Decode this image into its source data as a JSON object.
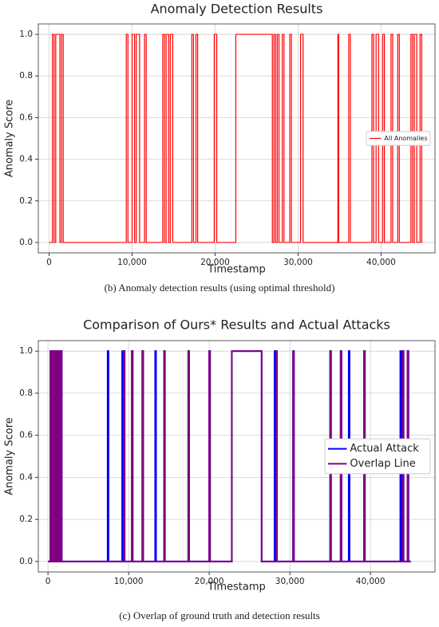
{
  "chart_data": [
    {
      "type": "line",
      "title": "Anomaly Detection Results",
      "x_label": "Timestamp",
      "y_label": "Anomaly Score",
      "caption": "(b) Anomaly detection results (using optimal threshold)",
      "xlim": [
        -1300,
        46500
      ],
      "ylim": [
        -0.05,
        1.05
      ],
      "xticks": [
        0,
        {
          "value": 10000,
          "label": "10,000"
        },
        {
          "value": 20000,
          "label": "20,000"
        },
        {
          "value": 30000,
          "label": "30,000"
        },
        {
          "value": 40000,
          "label": "40,000"
        }
      ],
      "yticks": [
        {
          "value": 0,
          "label": "0.0"
        },
        0.2,
        0.4,
        0.6,
        0.8,
        {
          "value": 1,
          "label": "1.0"
        }
      ],
      "grid": true,
      "legend": "center right",
      "series": [
        {
          "name": "All Anomalies",
          "color": "#ff0000",
          "x": [
            0,
            400,
            400,
            600,
            600,
            800,
            800,
            1300,
            1300,
            1500,
            1500,
            1700,
            1700,
            9300,
            9300,
            9500,
            9500,
            10000,
            10000,
            10300,
            10300,
            10500,
            10500,
            10900,
            10900,
            11500,
            11500,
            11700,
            11700,
            13700,
            13700,
            13900,
            13900,
            14100,
            14100,
            14400,
            14400,
            14600,
            14600,
            14900,
            14900,
            17200,
            17200,
            17400,
            17400,
            17700,
            17700,
            17900,
            17900,
            19900,
            19900,
            20200,
            20200,
            22500,
            22500,
            26900,
            26900,
            27100,
            27100,
            27300,
            27300,
            27500,
            27500,
            27700,
            27700,
            28100,
            28100,
            28300,
            28300,
            29000,
            29000,
            29200,
            29200,
            30300,
            30300,
            30600,
            30600,
            34800,
            34800,
            34900,
            34900,
            36100,
            36100,
            36300,
            36300,
            38900,
            38900,
            39100,
            39100,
            39400,
            39400,
            39700,
            39700,
            40200,
            40200,
            40400,
            40400,
            41200,
            41200,
            41400,
            41400,
            42000,
            42000,
            42200,
            42200,
            43600,
            43600,
            43800,
            43800,
            44000,
            44000,
            44300,
            44300,
            44700,
            44700,
            44900,
            44900,
            45000
          ],
          "values": [
            0,
            0,
            1,
            1,
            0,
            0,
            1,
            1,
            0,
            0,
            1,
            1,
            0,
            0,
            1,
            1,
            0,
            0,
            1,
            1,
            0,
            0,
            1,
            1,
            0,
            0,
            1,
            1,
            0,
            0,
            1,
            1,
            0,
            0,
            1,
            1,
            0,
            0,
            1,
            1,
            0,
            0,
            1,
            1,
            0,
            0,
            1,
            1,
            0,
            0,
            1,
            1,
            0,
            0,
            1,
            1,
            0,
            0,
            1,
            1,
            0,
            0,
            1,
            1,
            0,
            0,
            1,
            1,
            0,
            0,
            1,
            1,
            0,
            0,
            1,
            1,
            0,
            0,
            1,
            1,
            0,
            0,
            1,
            1,
            0,
            0,
            1,
            1,
            0,
            0,
            1,
            1,
            0,
            0,
            1,
            1,
            0,
            0,
            1,
            1,
            0,
            0,
            1,
            1,
            0,
            0,
            1,
            1,
            0,
            0,
            1,
            1,
            0,
            0,
            1,
            1,
            0,
            0
          ]
        }
      ]
    },
    {
      "type": "line",
      "title": "Comparison of Ours* Results and Actual Attacks",
      "x_label": "Timestamp",
      "y_label": "Anomaly Score",
      "caption": "(c) Overlap of ground truth and detection results",
      "xlim": [
        -1200,
        48000
      ],
      "ylim": [
        -0.05,
        1.05
      ],
      "xticks": [
        0,
        {
          "value": 10000,
          "label": "10,000"
        },
        {
          "value": 20000,
          "label": "20,000"
        },
        {
          "value": 30000,
          "label": "30,000"
        },
        {
          "value": 40000,
          "label": "40,000"
        }
      ],
      "yticks": [
        {
          "value": 0,
          "label": "0.0"
        },
        0.2,
        0.4,
        0.6,
        0.8,
        {
          "value": 1,
          "label": "1.0"
        }
      ],
      "grid": true,
      "legend": "center right",
      "series": [
        {
          "name": "Actual Attack",
          "color": "#0000ff",
          "x": [
            0,
            300,
            300,
            500,
            500,
            700,
            700,
            900,
            900,
            1100,
            1100,
            1300,
            1300,
            1500,
            1500,
            1700,
            1700,
            7400,
            7400,
            7500,
            7500,
            9200,
            9200,
            9300,
            9300,
            9400,
            9400,
            9500,
            9500,
            10400,
            10400,
            10500,
            10500,
            11700,
            11700,
            11800,
            11800,
            13300,
            13300,
            13400,
            13400,
            14400,
            14400,
            14500,
            14500,
            17400,
            17400,
            17500,
            17500,
            20000,
            20000,
            20100,
            20100,
            22800,
            22800,
            26500,
            26500,
            28100,
            28100,
            28200,
            28200,
            28300,
            28300,
            28400,
            28400,
            30400,
            30400,
            30500,
            30500,
            35000,
            35000,
            35100,
            35100,
            36300,
            36300,
            36400,
            36400,
            37300,
            37300,
            37400,
            37400,
            39200,
            39200,
            39300,
            39300,
            43700,
            43700,
            43800,
            43800,
            44000,
            44000,
            44100,
            44100,
            44600,
            44600,
            44700,
            44700,
            45000
          ],
          "values": [
            0,
            0,
            1,
            1,
            0,
            0,
            1,
            1,
            0,
            0,
            1,
            1,
            0,
            0,
            1,
            1,
            0,
            0,
            1,
            1,
            0,
            0,
            1,
            1,
            0,
            0,
            1,
            1,
            0,
            0,
            1,
            1,
            0,
            0,
            1,
            1,
            0,
            0,
            1,
            1,
            0,
            0,
            1,
            1,
            0,
            0,
            1,
            1,
            0,
            0,
            1,
            1,
            0,
            0,
            1,
            1,
            0,
            0,
            1,
            1,
            0,
            0,
            1,
            1,
            0,
            0,
            1,
            1,
            0,
            0,
            1,
            1,
            0,
            0,
            1,
            1,
            0,
            0,
            1,
            1,
            0,
            0,
            1,
            1,
            0,
            0,
            1,
            1,
            0,
            0,
            1,
            1,
            0,
            0,
            1,
            1,
            0,
            0
          ]
        },
        {
          "name": "Overlap Line",
          "color": "#800080",
          "x": [
            0,
            300,
            300,
            500,
            500,
            700,
            700,
            900,
            900,
            1100,
            1100,
            1300,
            1300,
            1500,
            1500,
            1700,
            1700,
            9400,
            9400,
            9500,
            9500,
            10400,
            10400,
            10500,
            10500,
            11700,
            11700,
            11800,
            11800,
            14400,
            14400,
            14500,
            14500,
            17400,
            17400,
            17500,
            17500,
            20000,
            20000,
            20100,
            20100,
            22800,
            22800,
            26500,
            26500,
            28300,
            28300,
            28400,
            28400,
            30400,
            30400,
            30500,
            30500,
            35000,
            35000,
            35100,
            35100,
            36300,
            36300,
            36400,
            36400,
            39200,
            39200,
            39300,
            39300,
            44000,
            44000,
            44100,
            44100,
            44600,
            44600,
            44700,
            44700,
            45000
          ],
          "values": [
            0,
            0,
            1,
            1,
            0,
            0,
            1,
            1,
            0,
            0,
            1,
            1,
            0,
            0,
            1,
            1,
            0,
            0,
            1,
            1,
            0,
            0,
            1,
            1,
            0,
            0,
            1,
            1,
            0,
            0,
            1,
            1,
            0,
            0,
            1,
            1,
            0,
            0,
            1,
            1,
            0,
            0,
            1,
            1,
            0,
            0,
            1,
            1,
            0,
            0,
            1,
            1,
            0,
            0,
            1,
            1,
            0,
            0,
            1,
            1,
            0,
            0,
            1,
            1,
            0,
            0,
            1,
            1,
            0,
            0,
            1,
            1,
            0,
            0
          ]
        }
      ]
    }
  ]
}
